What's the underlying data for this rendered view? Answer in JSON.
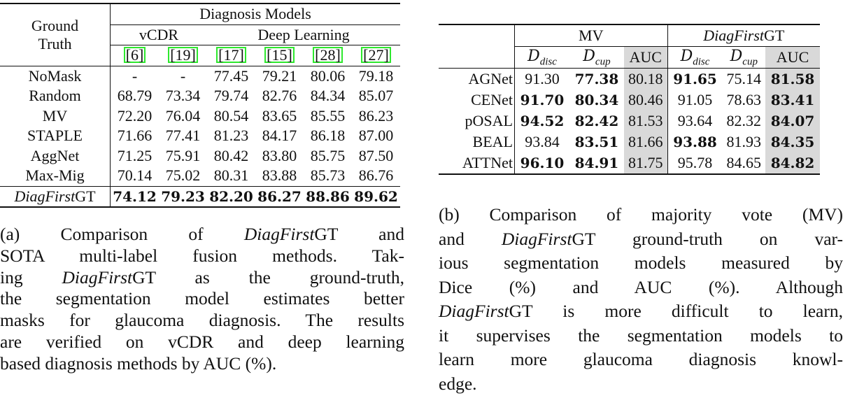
{
  "table_a": {
    "ground_truth_header": [
      "Ground",
      "Truth"
    ],
    "group_header": "Diagnosis Models",
    "subgroups": [
      "vCDR",
      "Deep Learning"
    ],
    "refs": [
      "[6]",
      "[19]",
      "[17]",
      "[15]",
      "[28]",
      "[27]"
    ],
    "ref_box_color": "#2ee82e",
    "rows": [
      {
        "label": "NoMask",
        "values": [
          "-",
          "-",
          "77.45",
          "79.21",
          "80.06",
          "79.18"
        ]
      },
      {
        "label": "Random",
        "values": [
          "68.79",
          "73.34",
          "79.74",
          "82.76",
          "84.34",
          "85.07"
        ]
      },
      {
        "label": "MV",
        "values": [
          "72.20",
          "76.04",
          "80.54",
          "83.65",
          "85.55",
          "86.23"
        ]
      },
      {
        "label": "STAPLE",
        "values": [
          "71.66",
          "77.41",
          "81.23",
          "84.17",
          "86.18",
          "87.00"
        ]
      },
      {
        "label": "AggNet",
        "values": [
          "71.25",
          "75.91",
          "80.42",
          "83.80",
          "85.75",
          "87.50"
        ]
      },
      {
        "label": "Max-Mig",
        "values": [
          "70.14",
          "75.02",
          "80.31",
          "83.88",
          "85.73",
          "86.76"
        ]
      }
    ],
    "final_row": {
      "label_italic": "DiagFirst",
      "label_rest": "GT",
      "values": [
        "74.12",
        "79.23",
        "82.20",
        "86.27",
        "88.86",
        "89.62"
      ]
    }
  },
  "table_b": {
    "groups": [
      {
        "text": "MV",
        "italic": ""
      },
      {
        "text": "GT",
        "italic": "DiagFirst"
      }
    ],
    "subheaders": [
      {
        "main": "D",
        "sub": "disc"
      },
      {
        "main": "D",
        "sub": "cup"
      },
      {
        "main": "AUC",
        "sub": ""
      },
      {
        "main": "D",
        "sub": "disc"
      },
      {
        "main": "D",
        "sub": "cup"
      },
      {
        "main": "AUC",
        "sub": ""
      }
    ],
    "highlight_color": "#d9d9d9",
    "rows": [
      {
        "label": "AGNet",
        "values": [
          "91.30",
          "77.38",
          "80.18",
          "91.65",
          "75.14",
          "81.58"
        ],
        "bold": [
          0,
          1,
          0,
          1,
          0,
          1
        ]
      },
      {
        "label": "CENet",
        "values": [
          "91.70",
          "80.34",
          "80.46",
          "91.05",
          "78.63",
          "83.41"
        ],
        "bold": [
          1,
          1,
          0,
          0,
          0,
          1
        ]
      },
      {
        "label": "pOSAL",
        "values": [
          "94.52",
          "82.42",
          "81.53",
          "93.64",
          "82.32",
          "84.07"
        ],
        "bold": [
          1,
          1,
          0,
          0,
          0,
          1
        ]
      },
      {
        "label": "BEAL",
        "values": [
          "93.84",
          "83.51",
          "81.66",
          "93.88",
          "81.93",
          "84.35"
        ],
        "bold": [
          0,
          1,
          0,
          1,
          0,
          1
        ]
      },
      {
        "label": "ATTNet",
        "values": [
          "96.10",
          "84.91",
          "81.75",
          "95.78",
          "84.65",
          "84.82"
        ],
        "bold": [
          1,
          1,
          0,
          0,
          0,
          1
        ]
      }
    ]
  },
  "caption_a": [
    [
      "(a) Comparison of ",
      "*DiagFirst",
      "GT and"
    ],
    [
      "SOTA multi-label fusion methods. Tak-"
    ],
    [
      "ing ",
      "*DiagFirst",
      "GT as the ground-truth,"
    ],
    [
      "the segmentation model estimates better"
    ],
    [
      "masks for glaucoma diagnosis. The results"
    ],
    [
      "are verified on vCDR and deep learning"
    ],
    [
      "based diagnosis methods by AUC (%)."
    ]
  ],
  "caption_b": [
    [
      "(b) Comparison of majority vote (MV)"
    ],
    [
      "and ",
      "*DiagFirst",
      "GT ground-truth on var-"
    ],
    [
      "ious segmentation models measured by"
    ],
    [
      "Dice (%) and AUC (%). Although"
    ],
    [
      "*DiagFirst",
      "GT is more difficult to learn,"
    ],
    [
      "it supervises the segmentation models to"
    ],
    [
      "learn more glaucoma diagnosis knowl-"
    ],
    [
      "edge."
    ]
  ]
}
